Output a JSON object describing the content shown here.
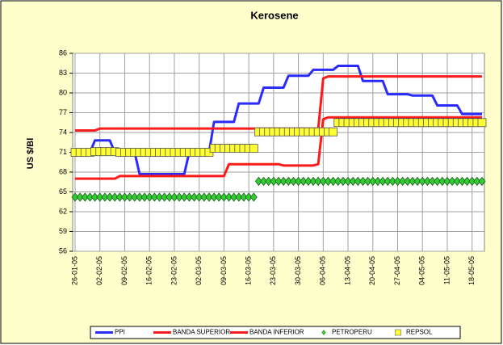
{
  "chart_data": {
    "type": "line",
    "title": "Kerosene",
    "y_label": "US $/Bl",
    "categories": [
      "26-01-05",
      null,
      null,
      null,
      null,
      "02-02-05",
      null,
      null,
      null,
      null,
      "09-02-05",
      null,
      null,
      null,
      null,
      "16-02-05",
      null,
      null,
      null,
      null,
      "23-02-05",
      null,
      null,
      null,
      null,
      "02-03-05",
      null,
      null,
      null,
      null,
      "09-03-05",
      null,
      null,
      null,
      null,
      "16-03-05",
      null,
      null,
      null,
      null,
      "23-03-05",
      null,
      null,
      null,
      null,
      "30-03-05",
      null,
      null,
      null,
      null,
      "06-04-05",
      null,
      null,
      null,
      null,
      "13-04-05",
      null,
      null,
      null,
      null,
      "20-04-05",
      null,
      null,
      null,
      null,
      "27-04-05",
      null,
      null,
      null,
      null,
      "04-05-05",
      null,
      null,
      null,
      null,
      "11-05-05",
      null,
      null,
      null,
      null,
      "18-05-05",
      null,
      null
    ],
    "series": [
      {
        "name": "PPI",
        "color": "#2b2bff",
        "style": "line",
        "values": [
          71,
          71,
          71,
          71,
          72.8,
          72.8,
          72.8,
          72.8,
          71,
          71,
          71,
          71,
          71,
          67.7,
          67.7,
          67.7,
          67.7,
          67.7,
          67.7,
          67.7,
          67.7,
          67.7,
          67.7,
          71,
          71,
          71,
          71,
          71,
          75.6,
          75.6,
          75.6,
          75.6,
          75.6,
          78.4,
          78.4,
          78.4,
          78.4,
          78.4,
          80.8,
          80.8,
          80.8,
          80.8,
          80.8,
          82.6,
          82.6,
          82.6,
          82.6,
          82.6,
          83.5,
          83.5,
          83.5,
          83.5,
          83.5,
          84.1,
          84.1,
          84.1,
          84.1,
          84.1,
          81.8,
          81.8,
          81.8,
          81.8,
          81.8,
          79.8,
          79.8,
          79.8,
          79.8,
          79.8,
          79.6,
          79.6,
          79.6,
          79.6,
          79.6,
          78.1,
          78.1,
          78.1,
          78.1,
          78.1,
          76.8,
          76.8,
          76.8,
          76.8,
          76.8
        ]
      },
      {
        "name": "BANDA SUPERIOR",
        "color": "#ff1a1a",
        "style": "line",
        "values": [
          74.3,
          74.3,
          74.3,
          74.3,
          74.3,
          74.6,
          74.6,
          74.6,
          74.6,
          74.6,
          74.6,
          74.6,
          74.6,
          74.6,
          74.6,
          74.6,
          74.6,
          74.6,
          74.6,
          74.6,
          74.6,
          74.6,
          74.6,
          74.6,
          74.6,
          74.6,
          74.6,
          74.6,
          74.6,
          74.6,
          74.6,
          74.6,
          74.6,
          74.6,
          74.6,
          74.6,
          74.6,
          74.6,
          74.6,
          74.6,
          74.6,
          74.6,
          74.6,
          74.6,
          74.6,
          74.6,
          74.6,
          74.6,
          74.6,
          74.6,
          82.2,
          82.5,
          82.5,
          82.5,
          82.5,
          82.5,
          82.5,
          82.5,
          82.5,
          82.5,
          82.5,
          82.5,
          82.5,
          82.5,
          82.5,
          82.5,
          82.5,
          82.5,
          82.5,
          82.5,
          82.5,
          82.5,
          82.5,
          82.5,
          82.5,
          82.5,
          82.5,
          82.5,
          82.5,
          82.5,
          82.5,
          82.5,
          82.5
        ]
      },
      {
        "name": "BANDA INFERIOR",
        "color": "#ff1a1a",
        "style": "line",
        "values": [
          67,
          67,
          67,
          67,
          67,
          67,
          67,
          67,
          67,
          67.4,
          67.4,
          67.4,
          67.4,
          67.4,
          67.4,
          67.4,
          67.4,
          67.4,
          67.4,
          67.4,
          67.4,
          67.4,
          67.4,
          67.4,
          67.4,
          67.4,
          67.4,
          67.4,
          67.4,
          67.4,
          67.4,
          69.2,
          69.2,
          69.2,
          69.2,
          69.2,
          69.2,
          69.2,
          69.2,
          69.2,
          69.2,
          69.2,
          69,
          69,
          69,
          69,
          69,
          69,
          69,
          69.2,
          76,
          76.3,
          76.3,
          76.3,
          76.3,
          76.3,
          76.3,
          76.3,
          76.3,
          76.3,
          76.3,
          76.3,
          76.3,
          76.3,
          76.3,
          76.3,
          76.3,
          76.3,
          76.3,
          76.3,
          76.3,
          76.3,
          76.3,
          76.3,
          76.3,
          76.3,
          76.3,
          76.3,
          76.3,
          76.3,
          76.3,
          76.3,
          76.3
        ]
      },
      {
        "name": "PETROPERU",
        "color": "#33cc33",
        "style": "diamond",
        "values": [
          64.2,
          64.2,
          64.2,
          64.2,
          64.2,
          64.2,
          64.2,
          64.2,
          64.2,
          64.2,
          64.2,
          64.2,
          64.2,
          64.2,
          64.2,
          64.2,
          64.2,
          64.2,
          64.2,
          64.2,
          64.2,
          64.2,
          64.2,
          64.2,
          64.2,
          64.2,
          64.2,
          64.2,
          64.2,
          64.2,
          64.2,
          64.2,
          64.2,
          64.2,
          64.2,
          64.2,
          64.2,
          66.6,
          66.6,
          66.6,
          66.6,
          66.6,
          66.6,
          66.6,
          66.6,
          66.6,
          66.6,
          66.6,
          66.6,
          66.6,
          66.6,
          66.6,
          66.6,
          66.6,
          66.6,
          66.6,
          66.6,
          66.6,
          66.6,
          66.6,
          66.6,
          66.6,
          66.6,
          66.6,
          66.6,
          66.6,
          66.6,
          66.6,
          66.6,
          66.6,
          66.6,
          66.6,
          66.6,
          66.6,
          66.6,
          66.6,
          66.6,
          66.6,
          66.6,
          66.6,
          66.6,
          66.6,
          66.6
        ]
      },
      {
        "name": "REPSOL",
        "color": "#ffff33",
        "style": "square",
        "values": [
          71,
          71,
          71,
          71,
          71.1,
          71.1,
          71.1,
          71.1,
          71.1,
          71,
          71,
          71,
          71,
          71,
          71,
          71,
          71,
          71,
          71,
          71,
          71,
          71,
          71,
          71,
          71,
          71,
          71,
          71,
          71.6,
          71.6,
          71.6,
          71.6,
          71.6,
          71.6,
          71.6,
          71.6,
          71.6,
          74.1,
          74.1,
          74.1,
          74.1,
          74.1,
          74.1,
          74.1,
          74.1,
          74.1,
          74.1,
          74.1,
          74.1,
          74.1,
          74.1,
          74.1,
          74.1,
          75.5,
          75.5,
          75.5,
          75.5,
          75.5,
          75.5,
          75.5,
          75.5,
          75.5,
          75.5,
          75.5,
          75.5,
          75.5,
          75.5,
          75.5,
          75.5,
          75.5,
          75.5,
          75.5,
          75.5,
          75.5,
          75.5,
          75.5,
          75.5,
          75.5,
          75.5,
          75.5,
          75.5,
          75.5,
          75.5
        ]
      }
    ],
    "ylim": [
      56,
      86
    ],
    "yticks": [
      56,
      59,
      62,
      65,
      68,
      71,
      74,
      77,
      80,
      83,
      86
    ],
    "grid": true,
    "legend": "bottom"
  }
}
